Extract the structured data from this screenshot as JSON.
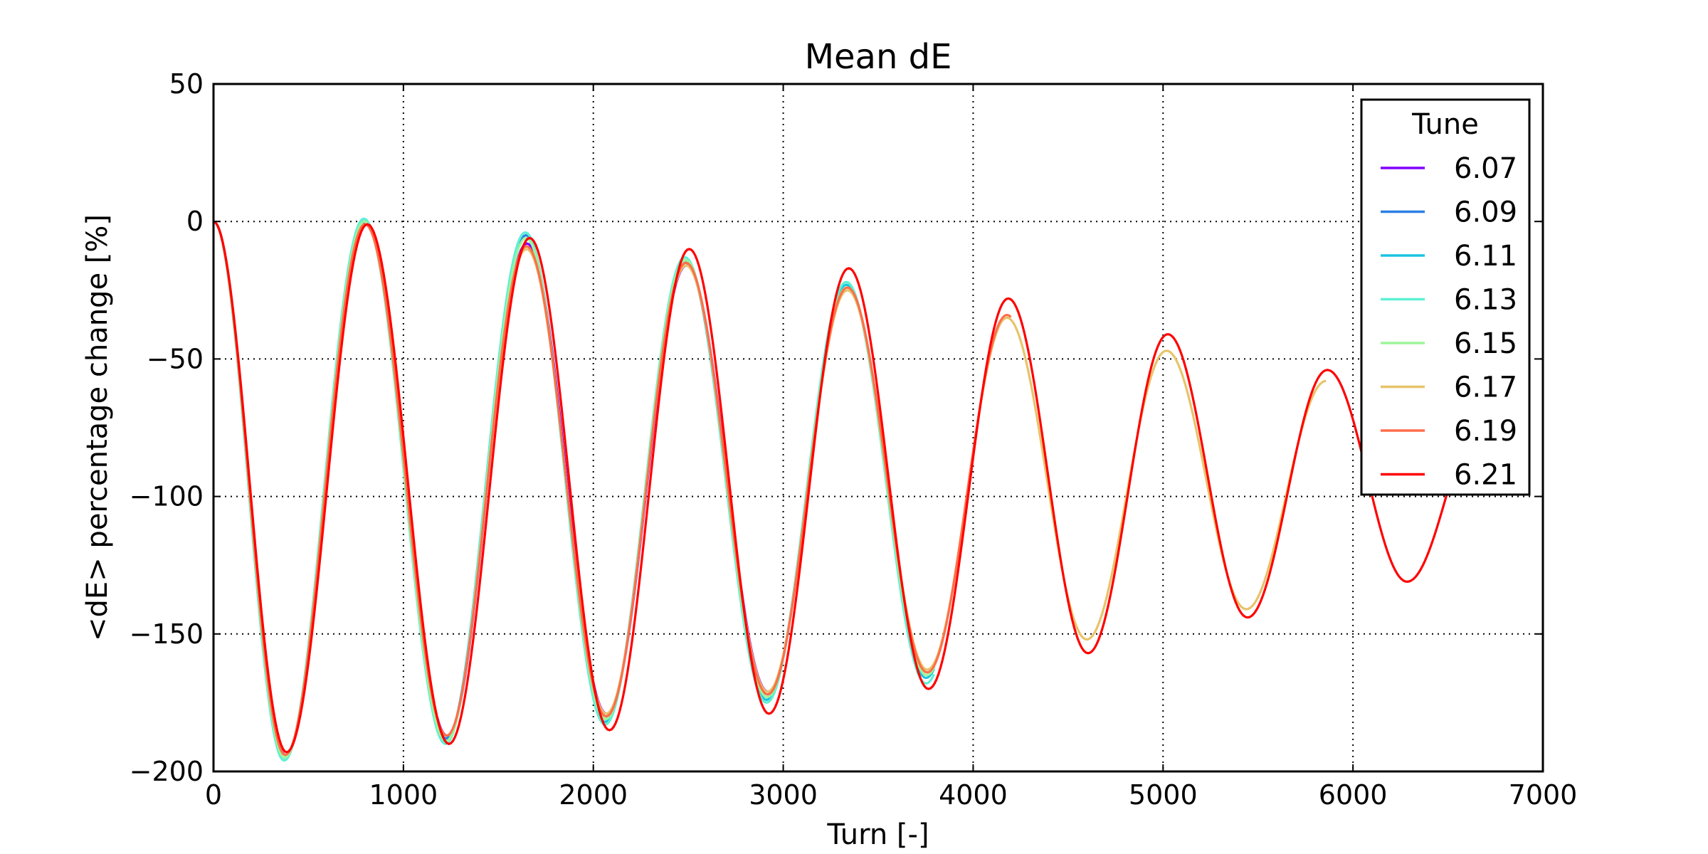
{
  "chart_data": {
    "type": "line",
    "title": "Mean dE",
    "xlabel": "Turn [-]",
    "ylabel": "<dE> percentage change [%]",
    "xlim": [
      0,
      7000
    ],
    "ylim": [
      -200,
      50
    ],
    "xticks": [
      "0",
      "1000",
      "2000",
      "3000",
      "4000",
      "5000",
      "6000",
      "7000"
    ],
    "yticks": [
      "50",
      "0",
      "−50",
      "−100",
      "−150",
      "−200"
    ],
    "grid": true,
    "legend": {
      "title": "Tune",
      "placement": "top-right"
    },
    "series": [
      {
        "name": "6.07",
        "color": "#8000ff",
        "end": 2950,
        "x": [
          0,
          380,
          800,
          1230,
          1650,
          2070,
          2490,
          2920
        ],
        "y": [
          0,
          -194,
          0,
          -187,
          -8,
          -179,
          -16,
          -171
        ]
      },
      {
        "name": "6.09",
        "color": "#2c7fe6",
        "end": 2950,
        "x": [
          0,
          375,
          795,
          1225,
          1645,
          2065,
          2485,
          2915
        ],
        "y": [
          0,
          -195,
          0,
          -188,
          -5,
          -181,
          -15,
          -173
        ]
      },
      {
        "name": "6.11",
        "color": "#1cc4e0",
        "end": 3800,
        "x": [
          0,
          372,
          792,
          1222,
          1642,
          2062,
          2482,
          2912,
          3332,
          3752
        ],
        "y": [
          0,
          -196,
          1,
          -189,
          -4,
          -182,
          -14,
          -174,
          -23,
          -166
        ]
      },
      {
        "name": "6.13",
        "color": "#5ef0d3",
        "end": 3800,
        "x": [
          0,
          372,
          792,
          1222,
          1642,
          2062,
          2482,
          2912,
          3332,
          3752
        ],
        "y": [
          0,
          -196,
          1,
          -190,
          -4,
          -183,
          -13,
          -175,
          -22,
          -168
        ]
      },
      {
        "name": "6.15",
        "color": "#9ef59a",
        "end": 3800,
        "x": [
          0,
          375,
          795,
          1225,
          1645,
          2065,
          2485,
          2915,
          3335,
          3755
        ],
        "y": [
          0,
          -195,
          0,
          -189,
          -6,
          -181,
          -14,
          -173,
          -24,
          -165
        ]
      },
      {
        "name": "6.17",
        "color": "#e8c36a",
        "end": 5860,
        "x": [
          0,
          378,
          798,
          1228,
          1648,
          2068,
          2488,
          2918,
          3338,
          3758,
          4178,
          4598,
          5018,
          5438,
          5858
        ],
        "y": [
          0,
          -194,
          -1,
          -187,
          -10,
          -179,
          -16,
          -171,
          -25,
          -163,
          -35,
          -152,
          -47,
          -141,
          -58
        ]
      },
      {
        "name": "6.19",
        "color": "#ff6e4a",
        "end": 4200,
        "x": [
          0,
          378,
          798,
          1228,
          1648,
          2068,
          2488,
          2918,
          3338,
          3758,
          4178
        ],
        "y": [
          0,
          -194,
          -1,
          -187,
          -9,
          -180,
          -15,
          -172,
          -24,
          -164,
          -34
        ]
      },
      {
        "name": "6.21",
        "color": "#ff0000",
        "end": 6700,
        "x": [
          0,
          385,
          810,
          1240,
          1665,
          2085,
          2505,
          2925,
          3345,
          3765,
          4185,
          4605,
          5025,
          5445,
          5865,
          6285
        ],
        "y": [
          0,
          -193,
          -1,
          -190,
          -6,
          -185,
          -10,
          -179,
          -17,
          -170,
          -28,
          -157,
          -41,
          -144,
          -54,
          -131
        ]
      }
    ]
  }
}
